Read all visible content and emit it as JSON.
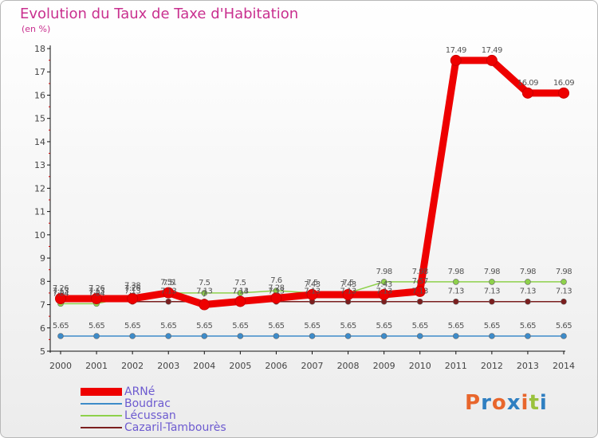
{
  "header": {
    "title": "Evolution du Taux de Taxe d'Habitation",
    "unit": "(en %)"
  },
  "logo": {
    "text": "Proxiti",
    "colors": [
      "#e8662c",
      "#2f7fc1",
      "#e8662c",
      "#2f7fc1",
      "#e8662c",
      "#9ac23c",
      "#2f7fc1"
    ]
  },
  "chart_data": {
    "type": "line",
    "title": "Evolution du Taux de Taxe d'Habitation",
    "ylabel": "(en %)",
    "x": [
      "2000",
      "2001",
      "2002",
      "2003",
      "2004",
      "2005",
      "2006",
      "2007",
      "2008",
      "2009",
      "2010",
      "2011",
      "2012",
      "2013",
      "2014"
    ],
    "ylim": [
      5,
      18
    ],
    "yticks": [
      5,
      6,
      7,
      8,
      9,
      10,
      11,
      12,
      13,
      14,
      15,
      16,
      17,
      18
    ],
    "grid": false,
    "legend": "bottom-left",
    "series": [
      {
        "name": "ARNé",
        "color": "#ee0000",
        "values": [
          7.26,
          7.26,
          7.26,
          7.51,
          7.0,
          7.14,
          7.28,
          7.43,
          7.43,
          7.43,
          7.57,
          17.49,
          17.49,
          16.09,
          16.09
        ],
        "labels": [
          "7.26",
          "7.26",
          "7.26",
          "7.51",
          "7",
          "7.14",
          "7.28",
          "7.43",
          "7.43",
          "7.43",
          "7.57",
          "17.49",
          "17.49",
          "16.09",
          "16.09"
        ]
      },
      {
        "name": "Boudrac",
        "color": "#3d8bc9",
        "values": [
          5.65,
          5.65,
          5.65,
          5.65,
          5.65,
          5.65,
          5.65,
          5.65,
          5.65,
          5.65,
          5.65,
          5.65,
          5.65,
          5.65,
          5.65
        ],
        "labels": [
          "5.65",
          "5.65",
          "5.65",
          "5.65",
          "5.65",
          "5.65",
          "5.65",
          "5.65",
          "5.65",
          "5.65",
          "5.65",
          "5.65",
          "5.65",
          "5.65",
          "5.65"
        ]
      },
      {
        "name": "Lécussan",
        "color": "#8ed14b",
        "values": [
          7.04,
          7.04,
          7.38,
          7.5,
          7.5,
          7.5,
          7.6,
          7.5,
          7.5,
          7.98,
          7.98,
          7.98,
          7.98,
          7.98,
          7.98
        ],
        "labels": [
          "7.04",
          "7.04",
          "7.38",
          "7.5",
          "7.5",
          "7.5",
          "7.6",
          "7.5",
          "7.5",
          "7.98",
          "7.98",
          "7.98",
          "7.98",
          "7.98",
          "7.98"
        ]
      },
      {
        "name": "Cazaril-Tambourès",
        "color": "#7b1f1f",
        "values": [
          7.13,
          7.13,
          7.13,
          7.13,
          7.13,
          7.13,
          7.13,
          7.13,
          7.13,
          7.13,
          7.13,
          7.13,
          7.13,
          7.13,
          7.13
        ],
        "labels": [
          "7.13",
          "7.13",
          "7.13",
          "7.13",
          "7.13",
          "7.13",
          "7.13",
          "7.13",
          "7.13",
          "7.13",
          "7.13",
          "7.13",
          "7.13",
          "7.13",
          "7.13"
        ]
      }
    ]
  }
}
